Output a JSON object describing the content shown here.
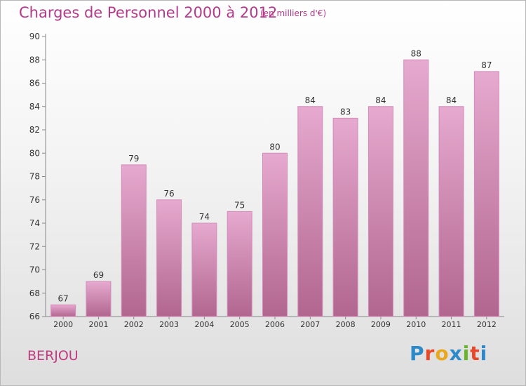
{
  "header": {
    "title": "Charges de Personnel 2000 à 2012",
    "unit": "(en milliers d'€)"
  },
  "footer": {
    "commune": "BERJOU",
    "logo": {
      "letters": [
        "P",
        "r",
        "o",
        "x",
        "i",
        "t",
        "i"
      ],
      "colors": [
        "#2e89c9",
        "#e8482a",
        "#e9a81d",
        "#2e89c9",
        "#66b52d",
        "#e8482a",
        "#2e89c9"
      ]
    }
  },
  "colors": {
    "bar_top": "#e6a9cf",
    "bar_bottom": "#b1668f",
    "text": "#b33a8a"
  },
  "chart_data": {
    "type": "bar",
    "categories": [
      "2000",
      "2001",
      "2002",
      "2003",
      "2004",
      "2005",
      "2006",
      "2007",
      "2008",
      "2009",
      "2010",
      "2011",
      "2012"
    ],
    "values": [
      67,
      69,
      79,
      76,
      74,
      75,
      80,
      84,
      83,
      84,
      88,
      84,
      87
    ],
    "ylim": [
      66,
      90
    ],
    "yticks": [
      66,
      68,
      70,
      72,
      74,
      76,
      78,
      80,
      82,
      84,
      86,
      88,
      90
    ],
    "grid": false,
    "data_labels": true
  }
}
